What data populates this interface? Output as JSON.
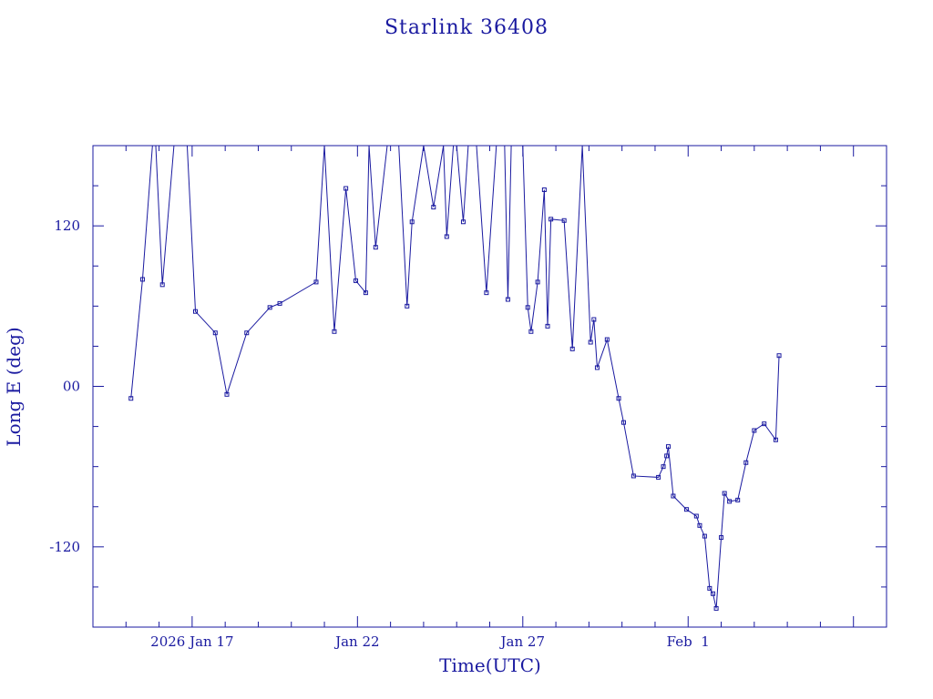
{
  "chart_data": {
    "type": "line",
    "title": "Starlink 36408",
    "xlabel": "Time(UTC)",
    "ylabel": "Long E (deg)",
    "x_tick_labels": [
      "2026 Jan 17",
      "Jan 22",
      "Jan 27",
      "Feb  1"
    ],
    "y_tick_labels": [
      "120",
      "00",
      "-120"
    ],
    "y_ticks": [
      120,
      0,
      -120
    ],
    "xlim_days_from_jan17": [
      -3.0,
      21.0
    ],
    "ylim": [
      -180,
      180
    ],
    "grid": false,
    "series": [
      {
        "x": [
          -1.85,
          -1.5,
          -1.2,
          -1.1,
          -0.9,
          -0.55,
          -0.3,
          -0.15,
          0.1,
          0.7,
          1.05,
          1.65,
          2.35,
          2.65,
          3.75,
          4.0,
          4.3,
          4.65,
          4.95,
          5.25,
          5.35,
          5.55,
          5.9,
          6.1,
          6.25,
          6.5,
          6.65,
          7.0,
          7.3,
          7.6,
          7.7,
          7.9,
          8.0,
          8.2,
          8.35,
          8.6,
          8.9,
          9.2,
          9.35,
          9.45,
          9.55,
          9.65,
          9.8,
          10.0,
          10.15,
          10.25,
          10.45,
          10.65,
          10.75,
          10.85,
          11.25,
          11.5,
          11.8,
          12.05,
          12.15,
          12.25,
          12.55,
          12.9,
          13.05,
          13.35,
          14.1,
          14.25,
          14.35,
          14.4,
          14.55,
          14.95,
          15.25,
          15.35,
          15.5,
          15.65,
          15.75,
          15.85,
          16.0,
          16.1,
          16.25,
          16.5,
          16.75,
          17.0,
          17.3,
          17.65,
          17.75
        ],
        "y": [
          -9,
          80,
          180,
          180,
          76,
          180,
          180,
          180,
          56,
          40,
          -6,
          40,
          59,
          62,
          78,
          180,
          41,
          148,
          79,
          70,
          180,
          104,
          180,
          180,
          180,
          60,
          123,
          180,
          134,
          180,
          112,
          180,
          180,
          123,
          180,
          180,
          70,
          180,
          180,
          180,
          65,
          180,
          180,
          180,
          59,
          41,
          78,
          147,
          45,
          125,
          124,
          28,
          180,
          33,
          50,
          14,
          35,
          -9,
          -27,
          -67,
          -68,
          -60,
          -52,
          -45,
          -82,
          -92,
          -97,
          -104,
          -112,
          -151,
          -155,
          -166,
          -113,
          -80,
          -86,
          -85,
          -57,
          -33,
          -28,
          -40,
          23
        ]
      }
    ]
  }
}
